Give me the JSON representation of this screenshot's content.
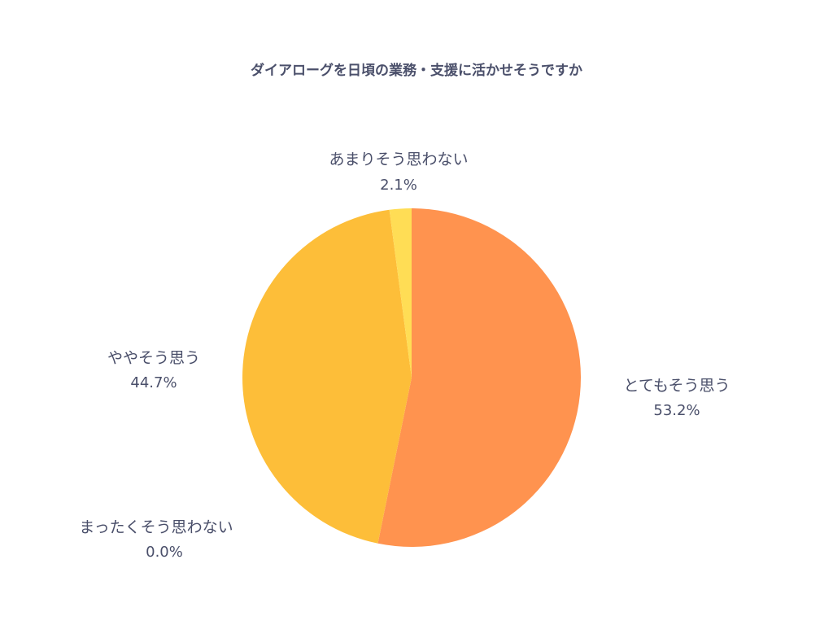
{
  "chart_data": {
    "type": "pie",
    "title": "ダイアローグを日頃の業務・支援に活かせそうですか",
    "start_angle_deg": 0,
    "direction": "clockwise",
    "legend": "none",
    "slices": [
      {
        "label": "とてもそう思う",
        "value": 53.2,
        "display": "53.2%",
        "color": "#ff934f"
      },
      {
        "label": "ややそう思う",
        "value": 44.7,
        "display": "44.7%",
        "color": "#fdbe39"
      },
      {
        "label": "まったくそう思わない",
        "value": 0.0,
        "display": "0.0%",
        "color": "#f4a340"
      },
      {
        "label": "あまりそう思わない",
        "value": 2.1,
        "display": "2.1%",
        "color": "#ffdd55"
      }
    ]
  }
}
